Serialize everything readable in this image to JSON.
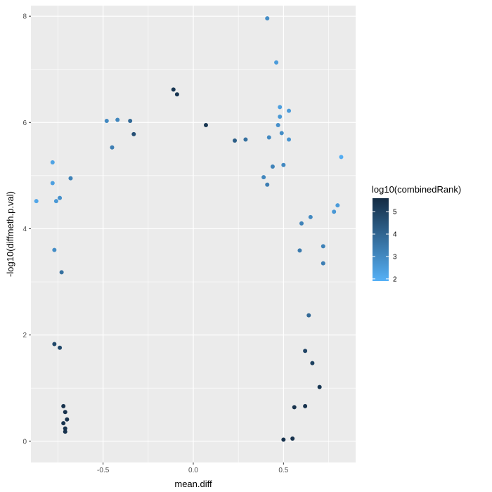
{
  "chart_data": {
    "type": "scatter",
    "xlabel": "mean.diff",
    "ylabel": "-log10(diffmeth.p.val)",
    "xlim": [
      -0.9,
      0.9
    ],
    "ylim": [
      -0.4,
      8.2
    ],
    "x_ticks": [
      -0.5,
      0.0,
      0.5
    ],
    "x_tick_labels": [
      "-0.5",
      "0.0",
      "0.5"
    ],
    "y_ticks": [
      0,
      2,
      4,
      6,
      8
    ],
    "y_tick_labels": [
      "0",
      "2",
      "4",
      "6",
      "8"
    ],
    "grid": true,
    "legend": {
      "title": "log10(combinedRank)",
      "placement": "right",
      "min": 1.9,
      "max": 5.6,
      "ticks": [
        2,
        3,
        4,
        5
      ],
      "tick_labels": [
        "2",
        "3",
        "4",
        "5"
      ],
      "color_low": "#56B1F7",
      "color_high": "#132B43"
    },
    "panel_background": "#EBEBEB",
    "gridline_color": "#FFFFFF",
    "points": [
      {
        "x": 0.41,
        "y": 7.96,
        "c": 2.9
      },
      {
        "x": 0.46,
        "y": 7.13,
        "c": 2.5
      },
      {
        "x": -0.11,
        "y": 6.62,
        "c": 5.3
      },
      {
        "x": -0.09,
        "y": 6.53,
        "c": 5.3
      },
      {
        "x": 0.48,
        "y": 6.29,
        "c": 2.4
      },
      {
        "x": 0.53,
        "y": 6.22,
        "c": 2.5
      },
      {
        "x": -0.48,
        "y": 6.03,
        "c": 3.0
      },
      {
        "x": -0.42,
        "y": 6.05,
        "c": 3.1
      },
      {
        "x": -0.35,
        "y": 6.03,
        "c": 3.9
      },
      {
        "x": 0.07,
        "y": 5.95,
        "c": 5.3
      },
      {
        "x": 0.48,
        "y": 6.11,
        "c": 2.6
      },
      {
        "x": 0.47,
        "y": 5.95,
        "c": 2.8
      },
      {
        "x": 0.49,
        "y": 5.8,
        "c": 2.9
      },
      {
        "x": 0.42,
        "y": 5.72,
        "c": 3.0
      },
      {
        "x": 0.53,
        "y": 5.68,
        "c": 2.7
      },
      {
        "x": 0.29,
        "y": 5.68,
        "c": 3.7
      },
      {
        "x": 0.23,
        "y": 5.66,
        "c": 4.2
      },
      {
        "x": -0.33,
        "y": 5.78,
        "c": 4.6
      },
      {
        "x": -0.45,
        "y": 5.53,
        "c": 3.3
      },
      {
        "x": 0.82,
        "y": 5.35,
        "c": 2.0
      },
      {
        "x": -0.78,
        "y": 5.25,
        "c": 2.3
      },
      {
        "x": -0.78,
        "y": 4.86,
        "c": 2.4
      },
      {
        "x": -0.87,
        "y": 4.52,
        "c": 2.2
      },
      {
        "x": -0.76,
        "y": 4.52,
        "c": 2.6
      },
      {
        "x": -0.74,
        "y": 4.58,
        "c": 2.8
      },
      {
        "x": -0.68,
        "y": 4.95,
        "c": 3.2
      },
      {
        "x": 0.8,
        "y": 4.44,
        "c": 2.5
      },
      {
        "x": 0.78,
        "y": 4.32,
        "c": 2.6
      },
      {
        "x": 0.65,
        "y": 4.22,
        "c": 3.0
      },
      {
        "x": 0.6,
        "y": 4.1,
        "c": 3.2
      },
      {
        "x": 0.44,
        "y": 5.17,
        "c": 3.2
      },
      {
        "x": 0.5,
        "y": 5.2,
        "c": 3.0
      },
      {
        "x": 0.39,
        "y": 4.97,
        "c": 3.1
      },
      {
        "x": 0.41,
        "y": 4.83,
        "c": 3.3
      },
      {
        "x": -0.77,
        "y": 3.6,
        "c": 2.9
      },
      {
        "x": 0.72,
        "y": 3.67,
        "c": 3.2
      },
      {
        "x": 0.72,
        "y": 3.35,
        "c": 3.3
      },
      {
        "x": 0.59,
        "y": 3.59,
        "c": 3.4
      },
      {
        "x": -0.73,
        "y": 3.18,
        "c": 3.7
      },
      {
        "x": 0.64,
        "y": 2.37,
        "c": 3.9
      },
      {
        "x": -0.77,
        "y": 1.83,
        "c": 4.8
      },
      {
        "x": -0.74,
        "y": 1.76,
        "c": 4.8
      },
      {
        "x": 0.66,
        "y": 1.47,
        "c": 5.0
      },
      {
        "x": 0.7,
        "y": 1.02,
        "c": 5.3
      },
      {
        "x": 0.62,
        "y": 1.7,
        "c": 4.9
      },
      {
        "x": -0.72,
        "y": 0.66,
        "c": 5.4
      },
      {
        "x": -0.71,
        "y": 0.55,
        "c": 5.4
      },
      {
        "x": -0.7,
        "y": 0.41,
        "c": 5.4
      },
      {
        "x": -0.72,
        "y": 0.34,
        "c": 5.4
      },
      {
        "x": -0.71,
        "y": 0.24,
        "c": 5.4
      },
      {
        "x": -0.71,
        "y": 0.18,
        "c": 5.4
      },
      {
        "x": 0.62,
        "y": 0.66,
        "c": 5.4
      },
      {
        "x": 0.56,
        "y": 0.64,
        "c": 5.4
      },
      {
        "x": 0.55,
        "y": 0.05,
        "c": 5.4
      },
      {
        "x": 0.5,
        "y": 0.03,
        "c": 5.4
      }
    ]
  }
}
